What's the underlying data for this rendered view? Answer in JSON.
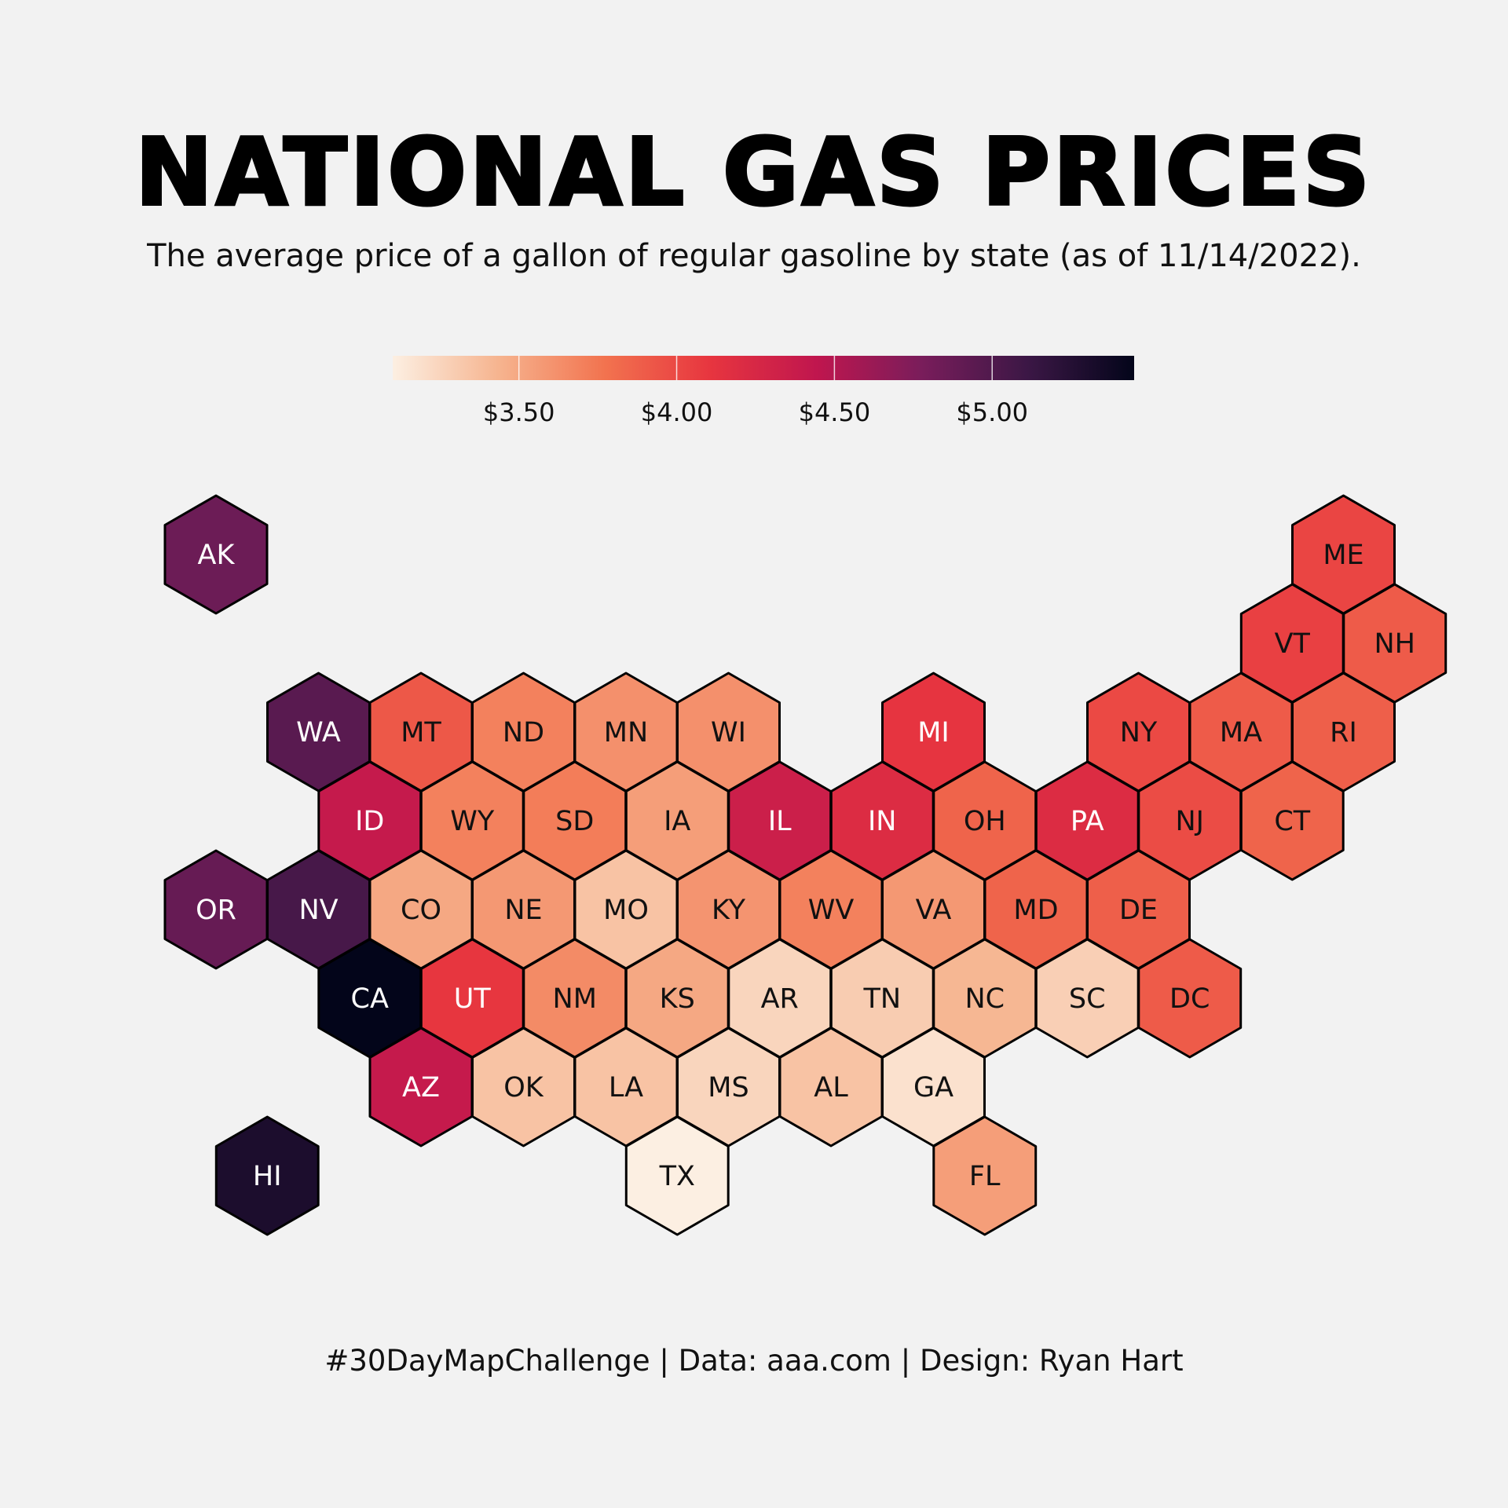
{
  "header": {
    "title": "NATIONAL GAS PRICES",
    "subtitle": "The average price of a gallon of regular gasoline by state (as of 11/14/2022)."
  },
  "footer": {
    "caption": "#30DayMapChallenge | Data: aaa.com | Design: Ryan Hart"
  },
  "legend": {
    "min": 3.1,
    "max": 5.45,
    "ticks": [
      {
        "value": 3.5,
        "label": "$3.50"
      },
      {
        "value": 4.0,
        "label": "$4.00"
      },
      {
        "value": 4.5,
        "label": "$4.50"
      },
      {
        "value": 5.0,
        "label": "$5.00"
      }
    ],
    "stops": [
      "#fcefe2",
      "#f6b48f",
      "#f2734f",
      "#e7353f",
      "#c0164e",
      "#791d5b",
      "#3b1745",
      "#03051a"
    ]
  },
  "chart_data": {
    "type": "heatmap",
    "title": "NATIONAL GAS PRICES",
    "subtitle": "The average price of a gallon of regular gasoline by state (as of 11/14/2022).",
    "unit": "$ per gallon",
    "states": [
      {
        "abbr": "AK",
        "row": 0,
        "col": 0,
        "price": 4.85
      },
      {
        "abbr": "ME",
        "row": 0,
        "col": 11,
        "price": 4.02
      },
      {
        "abbr": "VT",
        "row": 1,
        "col": 10,
        "price": 4.05
      },
      {
        "abbr": "NH",
        "row": 1,
        "col": 11,
        "price": 3.9
      },
      {
        "abbr": "WA",
        "row": 2,
        "col": 1,
        "price": 4.95
      },
      {
        "abbr": "MT",
        "row": 2,
        "col": 2,
        "price": 3.92
      },
      {
        "abbr": "ND",
        "row": 2,
        "col": 3,
        "price": 3.7
      },
      {
        "abbr": "MN",
        "row": 2,
        "col": 4,
        "price": 3.62
      },
      {
        "abbr": "WI",
        "row": 2,
        "col": 5,
        "price": 3.62
      },
      {
        "abbr": "MI",
        "row": 2,
        "col": 7,
        "price": 4.12
      },
      {
        "abbr": "NY",
        "row": 2,
        "col": 9,
        "price": 4.0
      },
      {
        "abbr": "MA",
        "row": 2,
        "col": 10,
        "price": 3.9
      },
      {
        "abbr": "RI",
        "row": 2,
        "col": 11,
        "price": 3.88
      },
      {
        "abbr": "ID",
        "row": 3,
        "col": 1,
        "price": 4.4
      },
      {
        "abbr": "WY",
        "row": 3,
        "col": 2,
        "price": 3.7
      },
      {
        "abbr": "SD",
        "row": 3,
        "col": 3,
        "price": 3.72
      },
      {
        "abbr": "IA",
        "row": 3,
        "col": 4,
        "price": 3.55
      },
      {
        "abbr": "IL",
        "row": 3,
        "col": 5,
        "price": 4.35
      },
      {
        "abbr": "IN",
        "row": 3,
        "col": 6,
        "price": 4.2
      },
      {
        "abbr": "OH",
        "row": 3,
        "col": 7,
        "price": 3.85
      },
      {
        "abbr": "PA",
        "row": 3,
        "col": 8,
        "price": 4.2
      },
      {
        "abbr": "NJ",
        "row": 3,
        "col": 9,
        "price": 3.98
      },
      {
        "abbr": "CT",
        "row": 3,
        "col": 10,
        "price": 3.85
      },
      {
        "abbr": "OR",
        "row": 4,
        "col": 0,
        "price": 4.88
      },
      {
        "abbr": "NV",
        "row": 4,
        "col": 1,
        "price": 5.05
      },
      {
        "abbr": "CO",
        "row": 4,
        "col": 2,
        "price": 3.5
      },
      {
        "abbr": "NE",
        "row": 4,
        "col": 3,
        "price": 3.58
      },
      {
        "abbr": "MO",
        "row": 4,
        "col": 4,
        "price": 3.35
      },
      {
        "abbr": "KY",
        "row": 4,
        "col": 5,
        "price": 3.6
      },
      {
        "abbr": "WV",
        "row": 4,
        "col": 6,
        "price": 3.7
      },
      {
        "abbr": "VA",
        "row": 4,
        "col": 7,
        "price": 3.58
      },
      {
        "abbr": "MD",
        "row": 4,
        "col": 8,
        "price": 3.85
      },
      {
        "abbr": "DE",
        "row": 4,
        "col": 9,
        "price": 3.88
      },
      {
        "abbr": "CA",
        "row": 5,
        "col": 1,
        "price": 5.45
      },
      {
        "abbr": "UT",
        "row": 5,
        "col": 2,
        "price": 4.1
      },
      {
        "abbr": "NM",
        "row": 5,
        "col": 3,
        "price": 3.65
      },
      {
        "abbr": "KS",
        "row": 5,
        "col": 4,
        "price": 3.5
      },
      {
        "abbr": "AR",
        "row": 5,
        "col": 5,
        "price": 3.25
      },
      {
        "abbr": "TN",
        "row": 5,
        "col": 6,
        "price": 3.3
      },
      {
        "abbr": "NC",
        "row": 5,
        "col": 7,
        "price": 3.42
      },
      {
        "abbr": "SC",
        "row": 5,
        "col": 8,
        "price": 3.28
      },
      {
        "abbr": "DC",
        "row": 5,
        "col": 9,
        "price": 3.9
      },
      {
        "abbr": "AZ",
        "row": 6,
        "col": 2,
        "price": 4.4
      },
      {
        "abbr": "OK",
        "row": 6,
        "col": 3,
        "price": 3.35
      },
      {
        "abbr": "LA",
        "row": 6,
        "col": 4,
        "price": 3.35
      },
      {
        "abbr": "MS",
        "row": 6,
        "col": 5,
        "price": 3.25
      },
      {
        "abbr": "AL",
        "row": 6,
        "col": 6,
        "price": 3.35
      },
      {
        "abbr": "GA",
        "row": 6,
        "col": 7,
        "price": 3.18
      },
      {
        "abbr": "HI",
        "row": 7,
        "col": 0,
        "price": 5.3
      },
      {
        "abbr": "TX",
        "row": 7,
        "col": 4,
        "price": 3.1
      },
      {
        "abbr": "FL",
        "row": 7,
        "col": 7,
        "price": 3.55
      }
    ]
  }
}
